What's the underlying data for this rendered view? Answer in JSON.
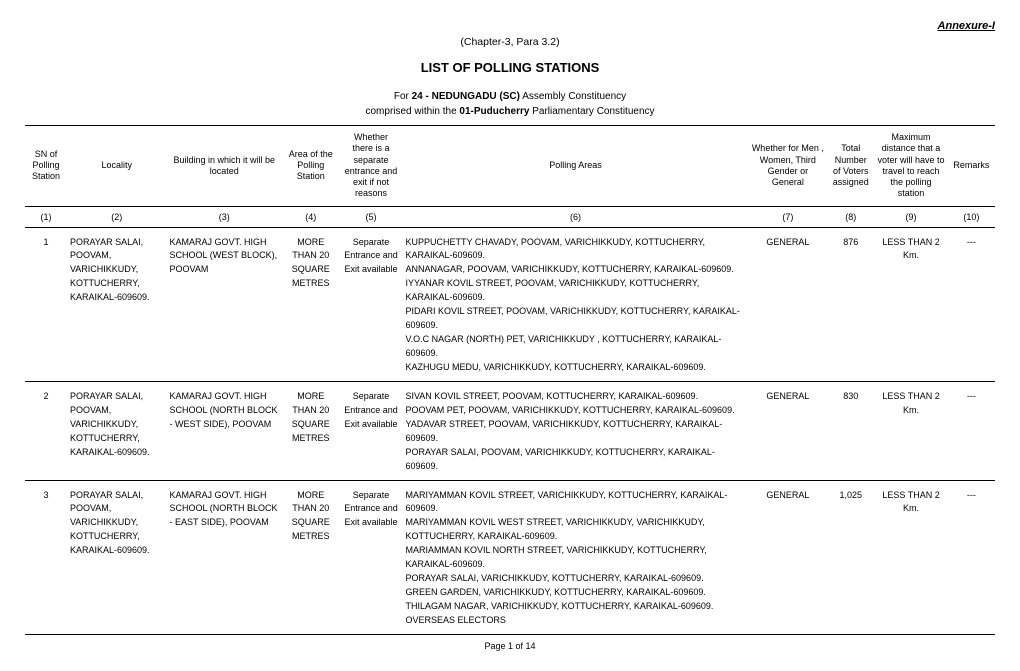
{
  "annexure": "Annexure-I",
  "chapter": "(Chapter-3, Para 3.2)",
  "title": "LIST OF POLLING STATIONS",
  "for_prefix": "For ",
  "constituency_num": "24 - NEDUNGADU (SC)",
  "constituency_suffix": " Assembly Constituency",
  "comprised_prefix": "comprised within the ",
  "parl": "01-Puducherry",
  "comprised_suffix": " Parliamentary Constituency",
  "headers": {
    "sn": "SN of Polling Station",
    "locality": "Locality",
    "building": "Building in which it will be located",
    "area": "Area of the Polling Station",
    "separate": "Whether there is a separate entrance and exit if not reasons",
    "polling_areas": "Polling Areas",
    "category": "Whether for Men , Women, Third Gender or General",
    "voters": "Total Number of Voters assigned",
    "distance": "Maximum distance that a voter will have to travel to reach the polling station",
    "remarks": "Remarks"
  },
  "colnums": [
    "(1)",
    "(2)",
    "(3)",
    "(4)",
    "(5)",
    "(6)",
    "(7)",
    "(8)",
    "(9)",
    "(10)"
  ],
  "rows": [
    {
      "sn": "1",
      "locality": "PORAYAR SALAI, POOVAM, VARICHIKKUDY, KOTTUCHERRY, KARAIKAL-609609.",
      "building": "KAMARAJ GOVT. HIGH SCHOOL (WEST BLOCK), POOVAM",
      "area": "MORE THAN 20 SQUARE METRES",
      "separate": "Separate Entrance and Exit available",
      "polling_areas": [
        "KUPPUCHETTY CHAVADY, POOVAM, VARICHIKKUDY,  KOTTUCHERRY, KARAIKAL-609609.",
        "ANNANAGAR, POOVAM, VARICHIKKUDY, KOTTUCHERRY, KARAIKAL-609609.",
        "IYYANAR KOVIL STREET, POOVAM, VARICHIKKUDY, KOTTUCHERRY, KARAIKAL-609609.",
        "PIDARI KOVIL STREET, POOVAM, VARICHIKKUDY, KOTTUCHERRY, KARAIKAL-609609.",
        "V.O.C NAGAR (NORTH) PET, VARICHIKKUDY , KOTTUCHERRY, KARAIKAL-609609.",
        "KAZHUGU MEDU, VARICHIKKUDY, KOTTUCHERRY, KARAIKAL-609609."
      ],
      "category": "GENERAL",
      "voters": "876",
      "distance": "LESS THAN 2 Km.",
      "remarks": "---"
    },
    {
      "sn": "2",
      "locality": "PORAYAR SALAI, POOVAM, VARICHIKKUDY, KOTTUCHERRY, KARAIKAL-609609.",
      "building": "KAMARAJ GOVT. HIGH SCHOOL (NORTH BLOCK - WEST SIDE), POOVAM",
      "area": "MORE THAN 20 SQUARE METRES",
      "separate": "Separate Entrance and Exit available",
      "polling_areas": [
        "SIVAN KOVIL STREET, POOVAM, KOTTUCHERRY, KARAIKAL-609609.",
        "POOVAM PET, POOVAM, VARICHIKKUDY, KOTTUCHERRY, KARAIKAL-609609.",
        "YADAVAR STREET, POOVAM, VARICHIKKUDY, KOTTUCHERRY, KARAIKAL-609609.",
        "PORAYAR SALAI, POOVAM, VARICHIKKUDY, KOTTUCHERRY, KARAIKAL-609609."
      ],
      "category": "GENERAL",
      "voters": "830",
      "distance": "LESS THAN 2 Km.",
      "remarks": "---"
    },
    {
      "sn": "3",
      "locality": "PORAYAR SALAI, POOVAM, VARICHIKKUDY, KOTTUCHERRY, KARAIKAL-609609.",
      "building": "KAMARAJ GOVT. HIGH SCHOOL  (NORTH BLOCK - EAST SIDE), POOVAM",
      "area": "MORE THAN 20 SQUARE METRES",
      "separate": "Separate Entrance and Exit available",
      "polling_areas": [
        "MARIYAMMAN KOVIL STREET, VARICHIKKUDY,  KOTTUCHERRY, KARAIKAL-609609.",
        "MARIYAMMAN KOVIL WEST STREET, VARICHIKKUDY,  VARICHIKKUDY, KOTTUCHERRY, KARAIKAL-609609.",
        "MARIAMMAN KOVIL NORTH STREET, VARICHIKKUDY,  KOTTUCHERRY, KARAIKAL-609609.",
        "PORAYAR SALAI, VARICHIKKUDY, KOTTUCHERRY, KARAIKAL-609609.",
        "GREEN GARDEN, VARICHIKKUDY, KOTTUCHERRY, KARAIKAL-609609.",
        "THILAGAM NAGAR, VARICHIKKUDY, KOTTUCHERRY, KARAIKAL-609609.",
        "OVERSEAS ELECTORS"
      ],
      "category": "GENERAL",
      "voters": "1,025",
      "distance": "LESS THAN 2 Km.",
      "remarks": "---"
    }
  ],
  "footer": "Page 1 of 14"
}
